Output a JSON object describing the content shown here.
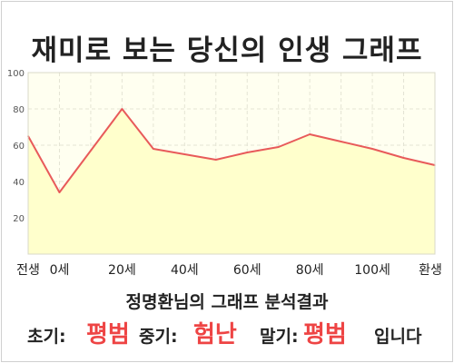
{
  "title": "재미로 보는 당신의 인생 그래프",
  "chart_data": {
    "type": "area",
    "x": [
      "전생",
      "0세",
      "",
      "20세",
      "",
      "40세",
      "",
      "60세",
      "",
      "80세",
      "",
      "100세",
      "",
      "환생"
    ],
    "values": [
      65,
      34,
      57,
      80,
      58,
      55,
      52,
      56,
      59,
      66,
      62,
      58,
      53,
      49
    ],
    "ylim": [
      0,
      100
    ],
    "yticks": [
      20,
      40,
      60,
      80,
      100
    ],
    "grid": true,
    "colors": {
      "line": "#e85a5a",
      "fill": "#ffffcc",
      "plot_bg": "#fffff0",
      "grid": "#e4e4d4"
    }
  },
  "result": {
    "heading": "정명환님의 그래프 분석결과",
    "early_label": "초기:",
    "early_value": "평범",
    "middle_label": "중기:",
    "middle_value": "험난",
    "late_label": "말기:",
    "late_value": "평범",
    "tail": "입니다"
  }
}
